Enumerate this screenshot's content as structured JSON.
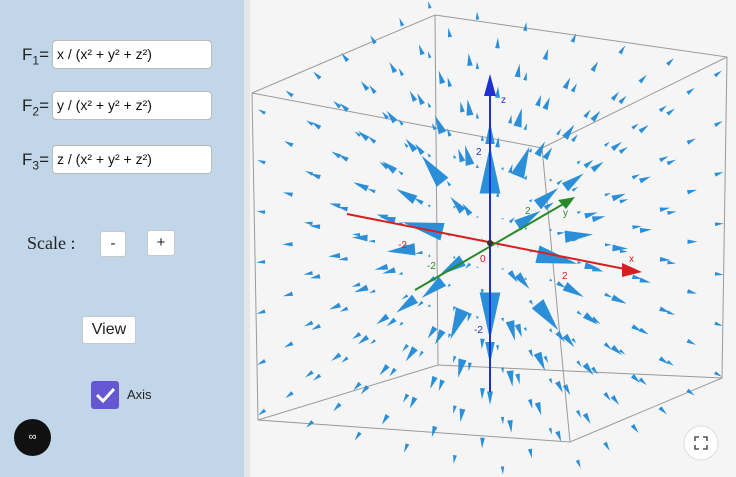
{
  "inputs": [
    {
      "label": "F",
      "index": "1",
      "sign": "=",
      "value": "x / (x² + y² + z²)"
    },
    {
      "label": "F",
      "index": "2",
      "sign": "=",
      "value": "y / (x² + y² + z²)"
    },
    {
      "label": "F",
      "index": "3",
      "sign": "=",
      "value": "z / (x² + y² + z²)"
    }
  ],
  "scale": {
    "label": "Scale :",
    "minus": "-",
    "plus": "+"
  },
  "view_button": "View",
  "axis_checkbox": {
    "label": "Axis",
    "checked": true
  },
  "graphics": {
    "origin": "0",
    "x_axis": {
      "name": "x",
      "neg": "-2",
      "pos": "2"
    },
    "y_axis": {
      "name": "y",
      "neg": "-2",
      "pos": "2"
    },
    "z_axis": {
      "name": "z",
      "neg": "-2",
      "pos": "2"
    }
  }
}
